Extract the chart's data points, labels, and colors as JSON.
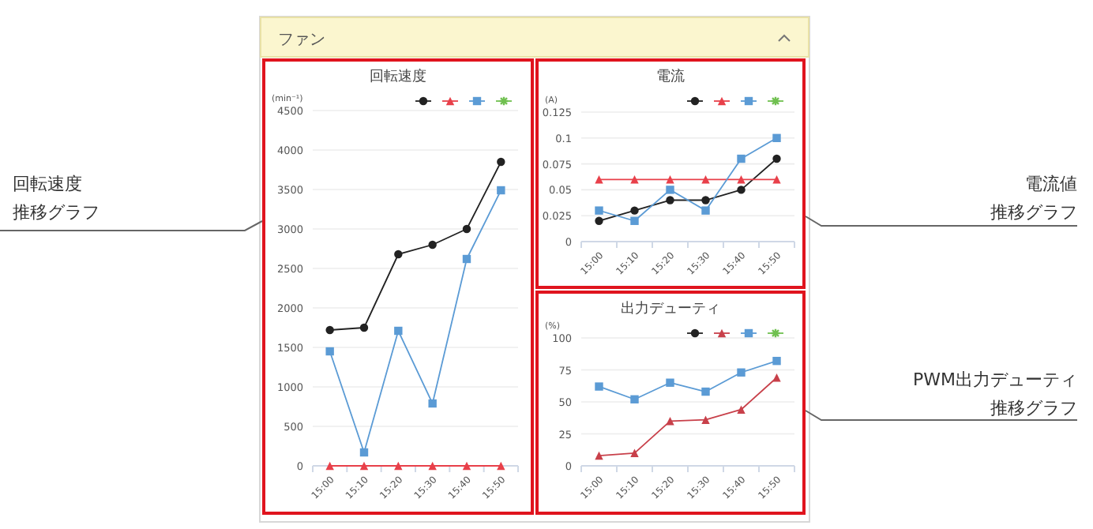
{
  "chart_data": [
    {
      "type": "line",
      "title": "回転速度",
      "ylabel": "(min⁻¹)",
      "categories": [
        "15:00",
        "15:10",
        "15:20",
        "15:30",
        "15:40",
        "15:50"
      ],
      "ylim": [
        0,
        4500
      ],
      "yticks": [
        0,
        500,
        1000,
        1500,
        2000,
        2500,
        3000,
        3500,
        4000,
        4500
      ],
      "grid": "y",
      "series": [
        {
          "color": "#222222",
          "marker": "circle",
          "values": [
            1720,
            1750,
            2680,
            2800,
            3000,
            3850
          ]
        },
        {
          "color": "#e8404a",
          "marker": "triangle",
          "values": [
            0,
            0,
            0,
            0,
            0,
            0
          ]
        },
        {
          "color": "#5b9bd5",
          "marker": "square",
          "values": [
            1450,
            170,
            1710,
            790,
            2620,
            3490
          ]
        },
        {
          "color": "#70c050",
          "marker": "star",
          "values": [
            null,
            null,
            null,
            null,
            null,
            null
          ]
        }
      ]
    },
    {
      "type": "line",
      "title": "電流",
      "ylabel": "(A)",
      "categories": [
        "15:00",
        "15:10",
        "15:20",
        "15:30",
        "15:40",
        "15:50"
      ],
      "ylim": [
        0,
        0.125
      ],
      "yticks": [
        0,
        0.025,
        0.05,
        0.075,
        0.1,
        0.125
      ],
      "grid": "y",
      "series": [
        {
          "color": "#222222",
          "marker": "circle",
          "values": [
            0.02,
            0.03,
            0.04,
            0.04,
            0.05,
            0.08
          ]
        },
        {
          "color": "#e8404a",
          "marker": "triangle",
          "values": [
            0.06,
            0.06,
            0.06,
            0.06,
            0.06,
            0.06
          ]
        },
        {
          "color": "#5b9bd5",
          "marker": "square",
          "values": [
            0.03,
            0.02,
            0.05,
            0.03,
            0.08,
            0.1
          ]
        },
        {
          "color": "#70c050",
          "marker": "star",
          "values": [
            null,
            null,
            null,
            null,
            null,
            null
          ]
        }
      ]
    },
    {
      "type": "line",
      "title": "出力デューティ",
      "ylabel": "(%)",
      "categories": [
        "15:00",
        "15:10",
        "15:20",
        "15:30",
        "15:40",
        "15:50"
      ],
      "ylim": [
        0,
        100
      ],
      "yticks": [
        0,
        25,
        50,
        75,
        100
      ],
      "grid": "y",
      "series": [
        {
          "color": "#222222",
          "marker": "circle",
          "values": [
            null,
            null,
            null,
            null,
            null,
            null
          ]
        },
        {
          "color": "#c8404a",
          "marker": "triangle",
          "values": [
            8,
            10,
            35,
            36,
            44,
            69
          ]
        },
        {
          "color": "#5b9bd5",
          "marker": "square",
          "values": [
            62,
            52,
            65,
            58,
            73,
            82
          ]
        },
        {
          "color": "#70c050",
          "marker": "star",
          "values": [
            null,
            null,
            null,
            null,
            null,
            null
          ]
        }
      ]
    },
    {
      "type": "other",
      "title": "ファン",
      "annotations": [
        "回転速度",
        "推移グラフ",
        "電流値",
        "推移グラフ",
        "PWM出力デューティ",
        "推移グラフ"
      ]
    }
  ]
}
